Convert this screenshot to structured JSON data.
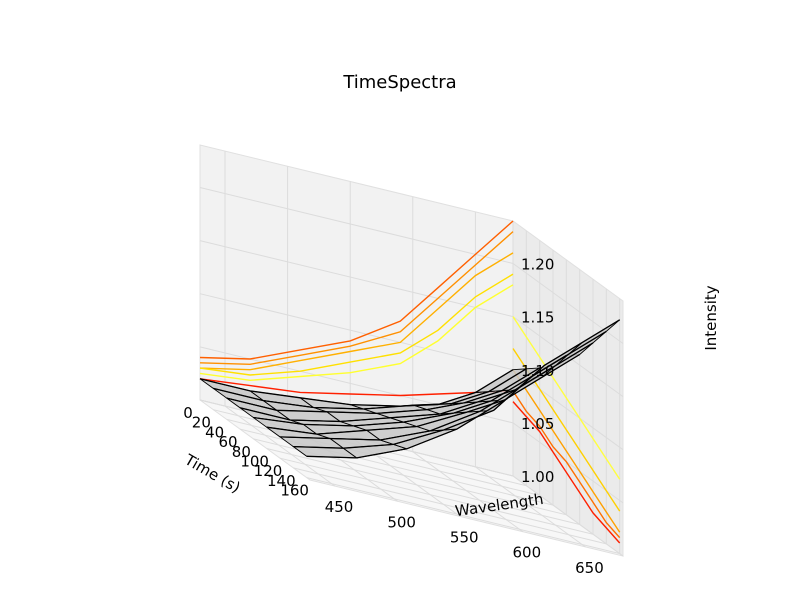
{
  "chart_data": {
    "type": "line",
    "title": "TimeSpectra",
    "xlabel": "Wavelength",
    "ylabel": "Time (s)",
    "zlabel": "Intensity",
    "x_ticks": [
      450,
      500,
      550,
      600,
      650
    ],
    "y_ticks": [
      0,
      20,
      40,
      60,
      80,
      100,
      120,
      140,
      160
    ],
    "z_ticks": [
      "1.00",
      "1.05",
      "1.10",
      "1.15",
      "1.20"
    ],
    "xlim": [
      430,
      680
    ],
    "ylim": [
      0,
      165
    ],
    "zlim": [
      1.0,
      1.24
    ],
    "grid": true,
    "surface": {
      "wavelengths": [
        430,
        470,
        510,
        550,
        590,
        620,
        650,
        680
      ],
      "times": [
        0,
        20,
        40,
        60,
        80,
        100,
        120,
        140,
        160
      ],
      "rows": [
        [
          1.02,
          1.02,
          1.025,
          1.03,
          1.04,
          1.05,
          1.07,
          1.1
        ],
        [
          1.02,
          1.02,
          1.025,
          1.035,
          1.05,
          1.06,
          1.08,
          1.11
        ],
        [
          1.02,
          1.02,
          1.03,
          1.04,
          1.055,
          1.07,
          1.09,
          1.12
        ],
        [
          1.02,
          1.02,
          1.03,
          1.045,
          1.06,
          1.08,
          1.1,
          1.13
        ],
        [
          1.02,
          1.025,
          1.035,
          1.05,
          1.07,
          1.09,
          1.12,
          1.15
        ],
        [
          1.02,
          1.025,
          1.04,
          1.055,
          1.08,
          1.1,
          1.13,
          1.16
        ],
        [
          1.02,
          1.03,
          1.04,
          1.06,
          1.09,
          1.12,
          1.15,
          1.18
        ],
        [
          1.02,
          1.03,
          1.045,
          1.07,
          1.1,
          1.14,
          1.17,
          1.2
        ],
        [
          1.02,
          1.03,
          1.05,
          1.08,
          1.12,
          1.16,
          1.19,
          1.22
        ]
      ]
    },
    "back_projection": {
      "wavelengths": [
        430,
        470,
        510,
        550,
        590,
        620,
        650,
        680
      ],
      "series": [
        {
          "color": "#ff6000",
          "values": [
            1.04,
            1.05,
            1.07,
            1.09,
            1.12,
            1.16,
            1.2,
            1.24
          ]
        },
        {
          "color": "#ff9000",
          "values": [
            1.035,
            1.045,
            1.065,
            1.085,
            1.11,
            1.15,
            1.19,
            1.23
          ]
        },
        {
          "color": "#ffb000",
          "values": [
            1.03,
            1.04,
            1.06,
            1.08,
            1.1,
            1.14,
            1.18,
            1.21
          ]
        },
        {
          "color": "#ffe000",
          "values": [
            1.03,
            1.035,
            1.05,
            1.07,
            1.09,
            1.12,
            1.16,
            1.19
          ]
        },
        {
          "color": "#ffff30",
          "values": [
            1.025,
            1.03,
            1.045,
            1.06,
            1.08,
            1.11,
            1.15,
            1.18
          ]
        },
        {
          "color": "#ff2000",
          "values": [
            1.02,
            1.025,
            1.03,
            1.04,
            1.05,
            1.06,
            1.07,
            1.08
          ]
        }
      ]
    },
    "side_projection": {
      "times": [
        0,
        20,
        40,
        60,
        80,
        100,
        120,
        140,
        160
      ],
      "series": [
        {
          "color": "#ffff40",
          "values": [
            1.15,
            1.14,
            1.13,
            1.12,
            1.11,
            1.1,
            1.09,
            1.08,
            1.07
          ]
        },
        {
          "color": "#ffd000",
          "values": [
            1.12,
            1.11,
            1.1,
            1.09,
            1.08,
            1.07,
            1.06,
            1.05,
            1.04
          ]
        },
        {
          "color": "#ffa000",
          "values": [
            1.1,
            1.09,
            1.08,
            1.07,
            1.06,
            1.05,
            1.04,
            1.03,
            1.02
          ]
        },
        {
          "color": "#ff7000",
          "values": [
            1.08,
            1.07,
            1.065,
            1.055,
            1.05,
            1.04,
            1.03,
            1.02,
            1.015
          ]
        },
        {
          "color": "#ff2000",
          "values": [
            1.07,
            1.065,
            1.06,
            1.05,
            1.04,
            1.03,
            1.02,
            1.015,
            1.01
          ]
        }
      ]
    }
  }
}
